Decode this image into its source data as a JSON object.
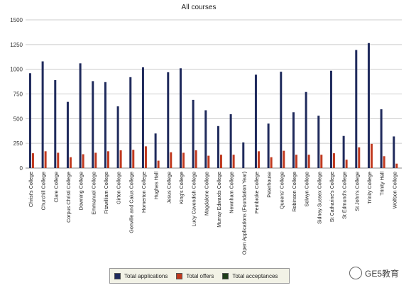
{
  "chart_data": {
    "type": "bar",
    "title": "All courses",
    "xlabel": "",
    "ylabel": "",
    "ylim": [
      0,
      1500
    ],
    "yticks": [
      0,
      250,
      500,
      750,
      1000,
      1250,
      1500
    ],
    "grid": true,
    "legend_position": "bottom",
    "categories": [
      "Christ's College",
      "Churchill College",
      "Clare College",
      "Corpus Christi College",
      "Downing College",
      "Emmanuel College",
      "Fitzwilliam College",
      "Girton College",
      "Gonville and Caius College",
      "Homerton College",
      "Hughes Hall",
      "Jesus College",
      "King's College",
      "Lucy Cavendish College",
      "Magdalene College",
      "Murray Edwards College",
      "Newnham College",
      "Open Applications (Foundation Year)",
      "Pembroke College",
      "Peterhouse",
      "Queens' College",
      "Robinson College",
      "Selwyn College",
      "Sidney Sussex College",
      "St Catharine's College",
      "St Edmund's College",
      "St John's College",
      "Trinity College",
      "Trinity Hall",
      "Wolfson College"
    ],
    "series": [
      {
        "name": "Total applications",
        "color": "#1f2a5c",
        "values": [
          960,
          1080,
          890,
          670,
          1060,
          880,
          870,
          625,
          920,
          1020,
          350,
          970,
          1010,
          690,
          585,
          425,
          545,
          260,
          945,
          450,
          975,
          565,
          770,
          530,
          985,
          325,
          1195,
          1265,
          595,
          320
        ]
      },
      {
        "name": "Total offers",
        "color": "#c0391f",
        "values": [
          150,
          170,
          155,
          110,
          140,
          155,
          170,
          180,
          185,
          220,
          75,
          160,
          155,
          180,
          125,
          135,
          135,
          0,
          170,
          110,
          175,
          135,
          135,
          135,
          150,
          85,
          210,
          245,
          120,
          45
        ]
      },
      {
        "name": "Total acceptances",
        "color": "#1f3d1a",
        "values": [
          0,
          0,
          0,
          0,
          0,
          0,
          0,
          0,
          0,
          0,
          0,
          0,
          0,
          0,
          0,
          0,
          0,
          0,
          0,
          0,
          0,
          0,
          0,
          0,
          0,
          0,
          0,
          0,
          0,
          0
        ]
      }
    ]
  },
  "watermark": {
    "text": "GE5教育",
    "icon": "wechat-icon"
  }
}
